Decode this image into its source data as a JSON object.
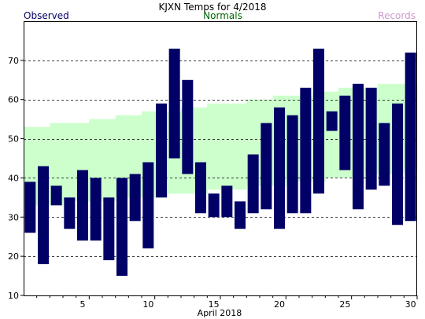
{
  "chart_data": {
    "type": "bar",
    "title": "KJXN Temps for 4/2018",
    "xlabel": "April 2018",
    "ylabel": "",
    "legend": {
      "observed": "Observed",
      "normals": "Normals",
      "records": "Records"
    },
    "colors": {
      "observed": "#000066",
      "normals_band": "#ccffcc",
      "normals_text": "#006600",
      "records_text": "#cc99cc",
      "grid": "#000000"
    },
    "xlim": [
      1,
      30
    ],
    "ylim": [
      10,
      80
    ],
    "yticks": [
      10,
      20,
      30,
      40,
      50,
      60,
      70
    ],
    "xticks": [
      5,
      10,
      15,
      20,
      25,
      30
    ],
    "grid": "dashed horizontal at 20-70",
    "days": [
      1,
      2,
      3,
      4,
      5,
      6,
      7,
      8,
      9,
      10,
      11,
      12,
      13,
      14,
      15,
      16,
      17,
      18,
      19,
      20,
      21,
      22,
      23,
      24,
      25,
      26,
      27,
      28,
      29,
      30
    ],
    "series": [
      {
        "name": "Observed",
        "kind": "range",
        "high": [
          39,
          43,
          38,
          35,
          42,
          40,
          35,
          40,
          41,
          44,
          59,
          73,
          65,
          44,
          36,
          38,
          34,
          46,
          54,
          58,
          56,
          63,
          73,
          57,
          61,
          64,
          63,
          54,
          59,
          72
        ],
        "low": [
          26,
          18,
          33,
          27,
          24,
          24,
          19,
          15,
          29,
          22,
          35,
          45,
          41,
          31,
          30,
          30,
          27,
          31,
          32,
          27,
          31,
          31,
          36,
          52,
          42,
          32,
          37,
          38,
          28,
          29
        ]
      },
      {
        "name": "Normals",
        "kind": "band",
        "high": [
          53,
          53,
          54,
          54,
          54,
          55,
          55,
          56,
          56,
          57,
          57,
          57,
          58,
          58,
          59,
          59,
          59,
          60,
          60,
          61,
          61,
          61,
          62,
          62,
          63,
          63,
          63,
          64,
          64,
          64
        ],
        "low": [
          33,
          33,
          33,
          34,
          34,
          34,
          34,
          35,
          35,
          35,
          35,
          36,
          36,
          36,
          37,
          37,
          37,
          38,
          38,
          38,
          39,
          39,
          39,
          40,
          40,
          40,
          41,
          41,
          41,
          42
        ]
      }
    ]
  }
}
